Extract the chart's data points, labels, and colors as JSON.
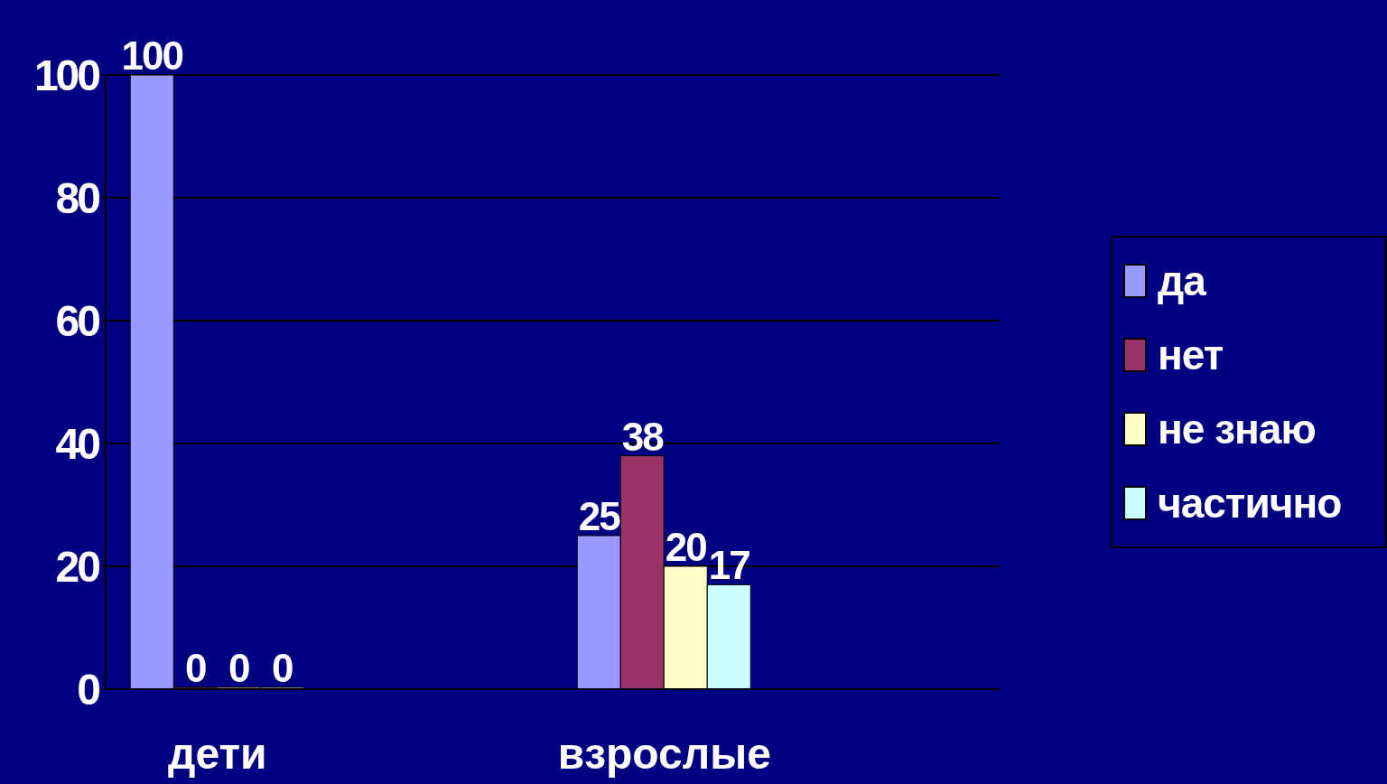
{
  "chart_data": {
    "type": "bar",
    "categories": [
      "дети",
      null,
      "взрослые",
      null
    ],
    "series": [
      {
        "name": "да",
        "color": "#9999ff",
        "values": [
          100,
          null,
          25,
          null
        ]
      },
      {
        "name": "нет",
        "color": "#993366",
        "values": [
          0,
          null,
          38,
          null
        ]
      },
      {
        "name": "не знаю",
        "color": "#ffffcc",
        "values": [
          0,
          null,
          20,
          null
        ]
      },
      {
        "name": "частично",
        "color": "#ccffff",
        "values": [
          0,
          null,
          17,
          null
        ]
      }
    ],
    "ylim": [
      0,
      100
    ],
    "yticks": [
      0,
      20,
      40,
      60,
      80,
      100
    ],
    "grid": "y",
    "legend": "right",
    "data_labels": true
  }
}
